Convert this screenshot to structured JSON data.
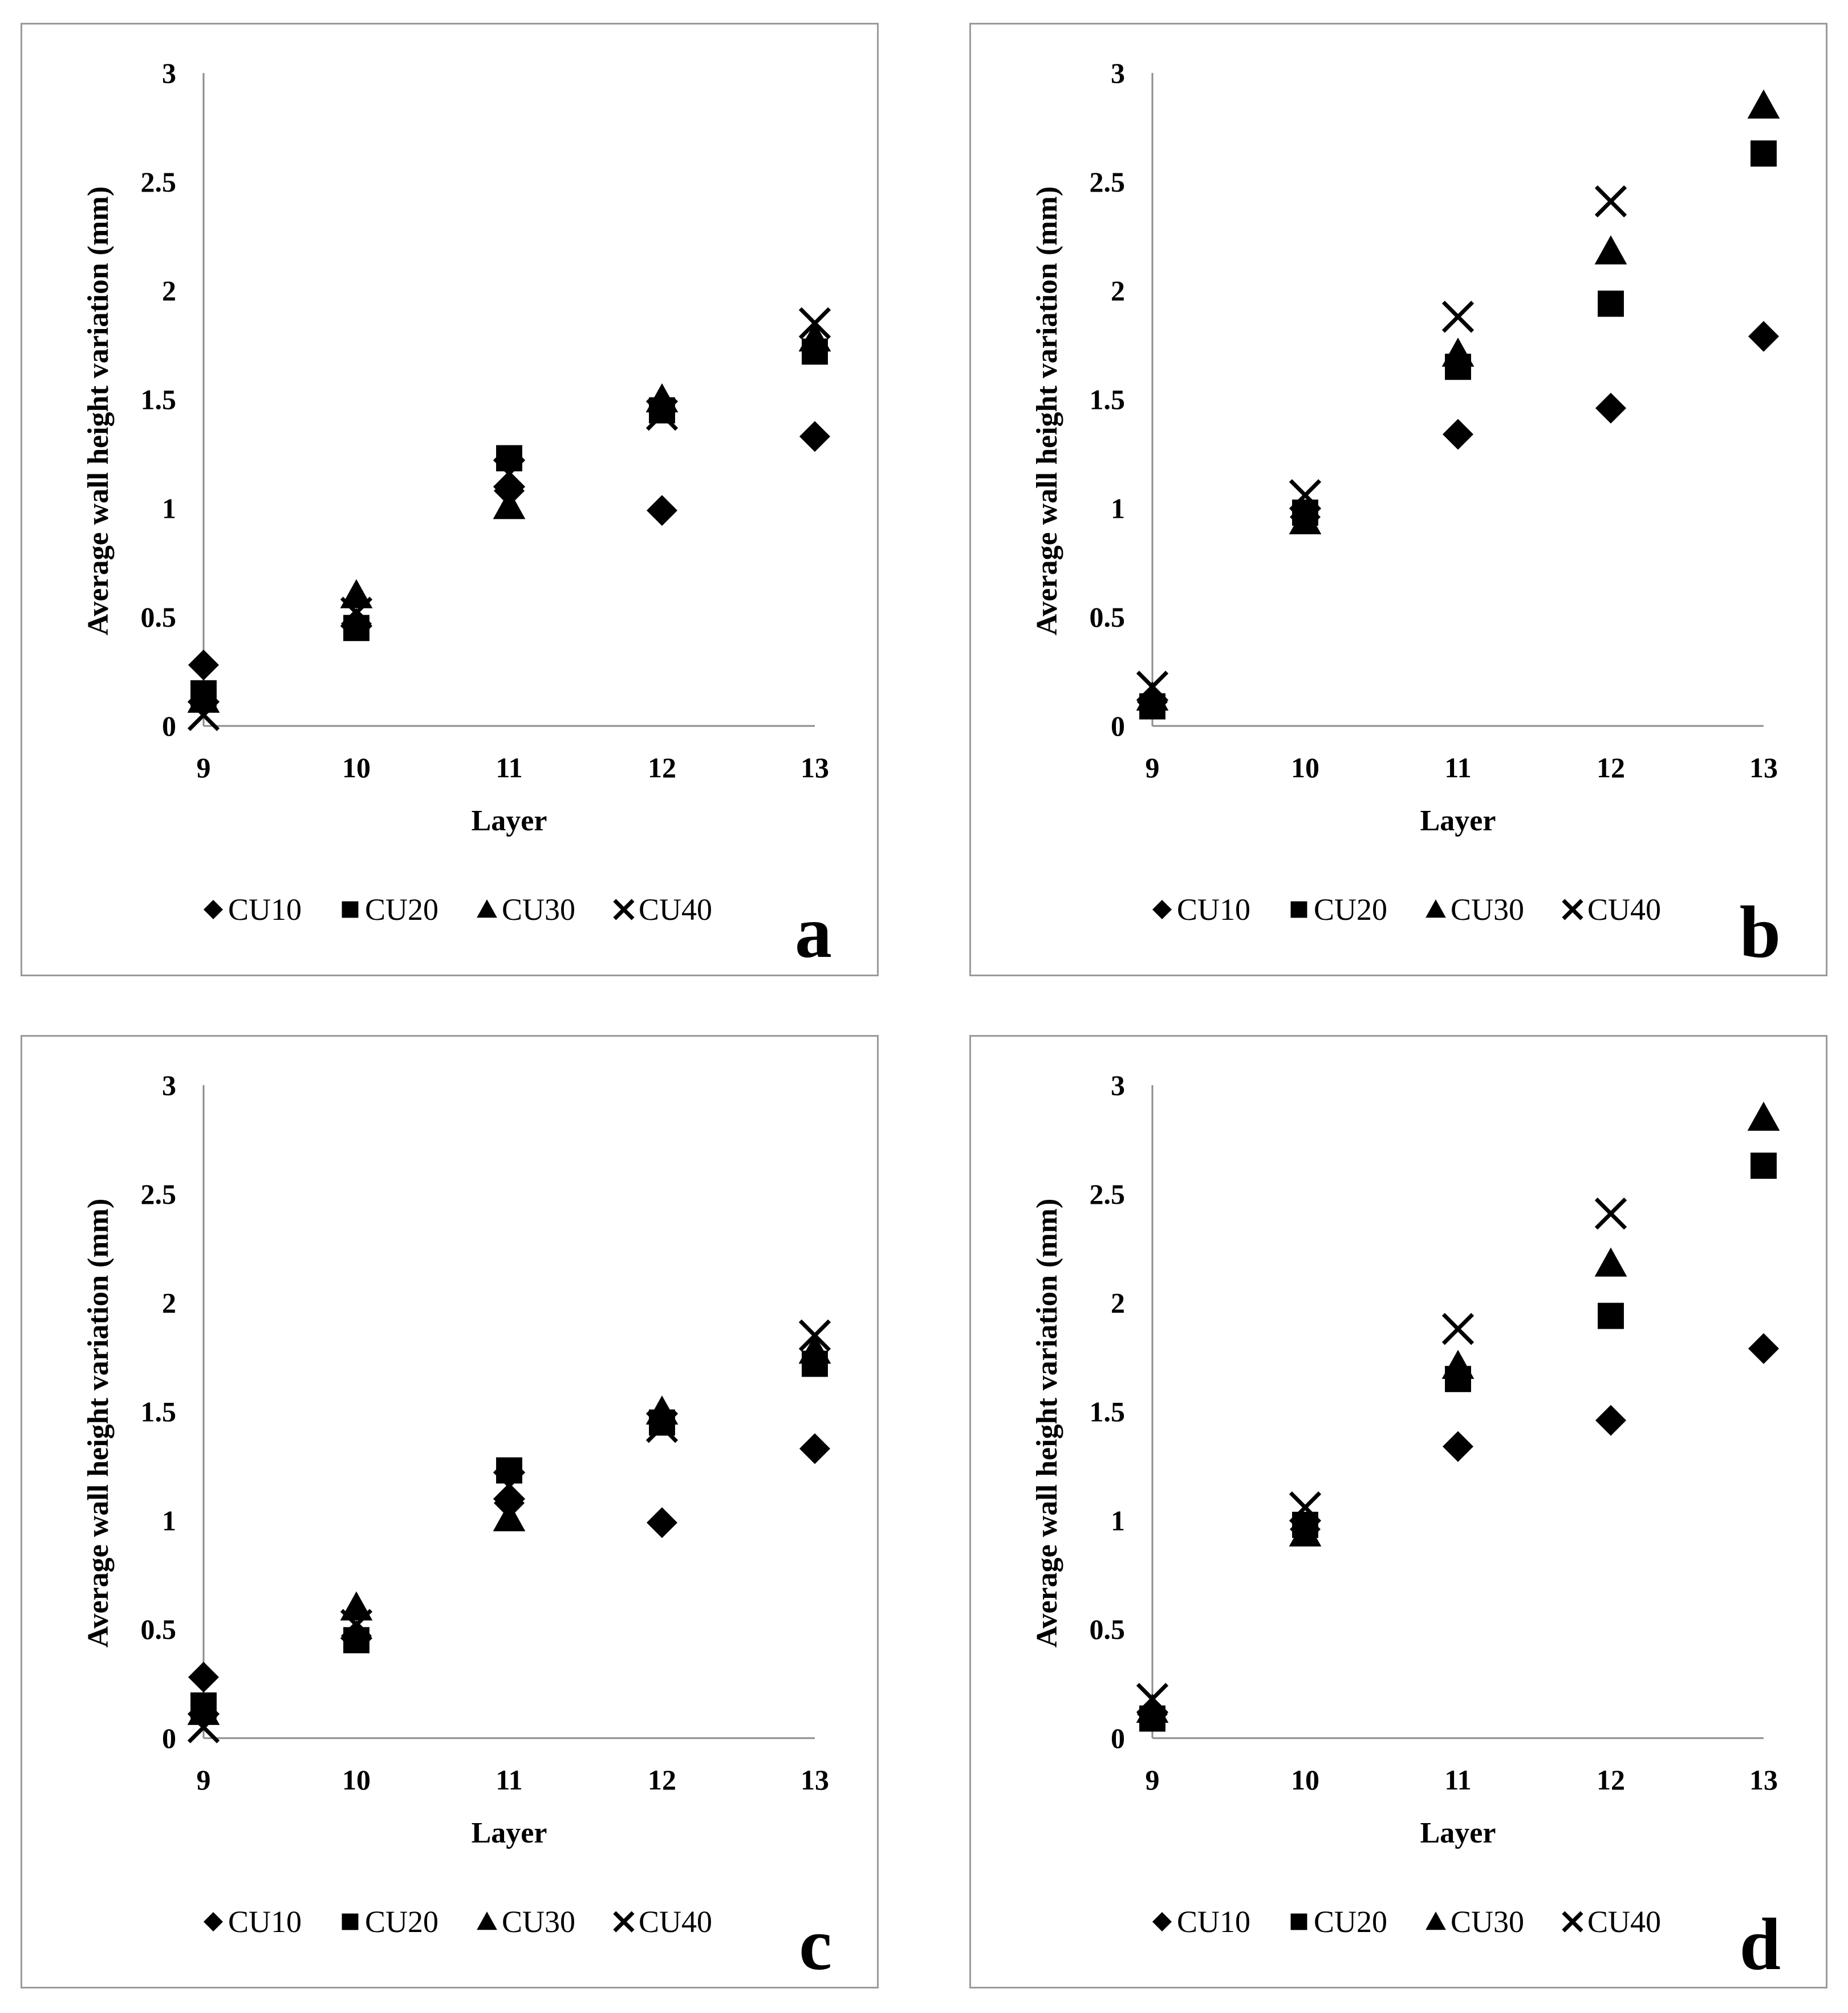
{
  "figure_colors": {
    "marker": "#000000",
    "axis": "#8c8c8c",
    "border": "#9a9a9a"
  },
  "chart_data": [
    {
      "panel_label": "a",
      "type": "scatter",
      "xlabel": "Layer",
      "ylabel": "Average wall height variation (mm)",
      "x": [
        9,
        10,
        11,
        12,
        13
      ],
      "x_tick_labels": [
        "9",
        "10",
        "11",
        "12",
        "13"
      ],
      "ylim": [
        0,
        3
      ],
      "y_tick_labels": [
        "0",
        "0.5",
        "1",
        "1.5",
        "2",
        "2.5",
        "3"
      ],
      "legend_position": "bottom",
      "series": [
        {
          "name": "CU10",
          "marker": "diamond",
          "values": [
            0.28,
            0.47,
            1.08,
            0.99,
            1.33
          ]
        },
        {
          "name": "CU20",
          "marker": "square",
          "values": [
            0.15,
            0.45,
            1.23,
            1.45,
            1.72
          ]
        },
        {
          "name": "CU30",
          "marker": "triangle",
          "values": [
            0.12,
            0.6,
            1.01,
            1.5,
            1.78
          ]
        },
        {
          "name": "CU40",
          "marker": "cross",
          "values": [
            0.05,
            0.52,
            1.16,
            1.43,
            1.85
          ]
        }
      ]
    },
    {
      "panel_label": "b",
      "type": "scatter",
      "xlabel": "Layer",
      "ylabel": "Average wall height variation (mm)",
      "x": [
        9,
        10,
        11,
        12,
        13
      ],
      "x_tick_labels": [
        "9",
        "10",
        "11",
        "12",
        "13"
      ],
      "ylim": [
        0,
        3
      ],
      "y_tick_labels": [
        "0",
        "0.5",
        "1",
        "1.5",
        "2",
        "2.5",
        "3"
      ],
      "legend_position": "bottom",
      "series": [
        {
          "name": "CU10",
          "marker": "diamond",
          "values": [
            0.11,
            0.96,
            1.34,
            1.46,
            1.79
          ]
        },
        {
          "name": "CU20",
          "marker": "square",
          "values": [
            0.09,
            0.98,
            1.65,
            1.94,
            2.63
          ]
        },
        {
          "name": "CU30",
          "marker": "triangle",
          "values": [
            0.13,
            0.94,
            1.71,
            2.18,
            2.85
          ]
        },
        {
          "name": "CU40",
          "marker": "cross",
          "values": [
            0.18,
            1.06,
            1.88,
            2.41,
            null
          ]
        }
      ]
    },
    {
      "panel_label": "c",
      "type": "scatter",
      "xlabel": "Layer",
      "ylabel": "Average wall height variation (mm)",
      "x": [
        9,
        10,
        11,
        12,
        13
      ],
      "x_tick_labels": [
        "9",
        "10",
        "11",
        "12",
        "13"
      ],
      "ylim": [
        0,
        3
      ],
      "y_tick_labels": [
        "0",
        "0.5",
        "1",
        "1.5",
        "2",
        "2.5",
        "3"
      ],
      "legend_position": "bottom",
      "series": [
        {
          "name": "CU10",
          "marker": "diamond",
          "values": [
            0.28,
            0.47,
            1.08,
            0.99,
            1.33
          ]
        },
        {
          "name": "CU20",
          "marker": "square",
          "values": [
            0.15,
            0.45,
            1.23,
            1.45,
            1.72
          ]
        },
        {
          "name": "CU30",
          "marker": "triangle",
          "values": [
            0.12,
            0.6,
            1.01,
            1.5,
            1.78
          ]
        },
        {
          "name": "CU40",
          "marker": "cross",
          "values": [
            0.05,
            0.52,
            1.16,
            1.43,
            1.85
          ]
        }
      ]
    },
    {
      "panel_label": "d",
      "type": "scatter",
      "xlabel": "Layer",
      "ylabel": "Average wall height variation (mm)",
      "x": [
        9,
        10,
        11,
        12,
        13
      ],
      "x_tick_labels": [
        "9",
        "10",
        "11",
        "12",
        "13"
      ],
      "ylim": [
        0,
        3
      ],
      "y_tick_labels": [
        "0",
        "0.5",
        "1",
        "1.5",
        "2",
        "2.5",
        "3"
      ],
      "legend_position": "bottom",
      "series": [
        {
          "name": "CU10",
          "marker": "diamond",
          "values": [
            0.11,
            0.96,
            1.34,
            1.46,
            1.79
          ]
        },
        {
          "name": "CU20",
          "marker": "square",
          "values": [
            0.09,
            0.98,
            1.65,
            1.94,
            2.63
          ]
        },
        {
          "name": "CU30",
          "marker": "triangle",
          "values": [
            0.13,
            0.94,
            1.71,
            2.18,
            2.85
          ]
        },
        {
          "name": "CU40",
          "marker": "cross",
          "values": [
            0.18,
            1.06,
            1.88,
            2.41,
            null
          ]
        }
      ]
    }
  ]
}
